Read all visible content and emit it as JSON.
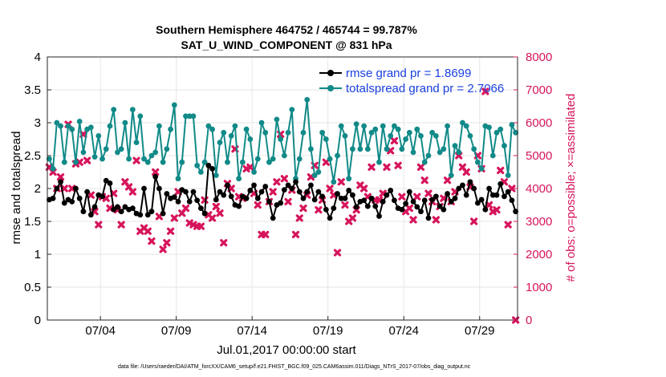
{
  "chart_data": {
    "type": "line",
    "title": "Southern Hemisphere 464752 / 465744 = 99.787%",
    "subtitle": "SAT_U_WIND_COMPONENT @ 831 hPa",
    "xlabel": "Jul.01,2017 00:00:00 start",
    "ylabel": "rmse and totalspread",
    "ylabel_right": "# of obs: o=possible; ×=assimilated",
    "xlim": [
      0.5,
      31.5
    ],
    "ylim": [
      0,
      4
    ],
    "ylim_right": [
      0,
      8000
    ],
    "x_ticks": [
      {
        "x": 4,
        "label": "07/04"
      },
      {
        "x": 9,
        "label": "07/09"
      },
      {
        "x": 14,
        "label": "07/14"
      },
      {
        "x": 19,
        "label": "07/19"
      },
      {
        "x": 24,
        "label": "07/24"
      },
      {
        "x": 29,
        "label": "07/29"
      }
    ],
    "y_ticks": [
      "0",
      "0.5",
      "1",
      "1.5",
      "2",
      "2.5",
      "3",
      "3.5",
      "4"
    ],
    "y_ticks_right": [
      "0",
      "1000",
      "2000",
      "3000",
      "4000",
      "5000",
      "6000",
      "7000",
      "8000"
    ],
    "legend_position": "top-right",
    "footer": "data file: /Users/raeder/DAI/ATM_forcXX/CAM6_setup/f.e21.FHIST_BGC.f09_025.CAM6assim.011/Diags_NTrS_2017-07/obs_diag_output.nc",
    "series": [
      {
        "name": "rmse grand pr = 1.8699",
        "color": "#000000",
        "x": [
          0.625,
          0.875,
          1.125,
          1.375,
          1.625,
          1.875,
          2.125,
          2.375,
          2.625,
          2.875,
          3.125,
          3.375,
          3.625,
          3.875,
          4.125,
          4.375,
          4.625,
          4.875,
          5.125,
          5.375,
          5.625,
          5.875,
          6.125,
          6.375,
          6.625,
          6.875,
          7.125,
          7.375,
          7.625,
          7.875,
          8.125,
          8.375,
          8.625,
          8.875,
          9.125,
          9.375,
          9.625,
          9.875,
          10.125,
          10.375,
          10.625,
          10.875,
          11.125,
          11.375,
          11.625,
          11.875,
          12.125,
          12.375,
          12.625,
          12.875,
          13.125,
          13.375,
          13.625,
          13.875,
          14.125,
          14.375,
          14.625,
          14.875,
          15.125,
          15.375,
          15.625,
          15.875,
          16.125,
          16.375,
          16.625,
          16.875,
          17.125,
          17.375,
          17.625,
          17.875,
          18.125,
          18.375,
          18.625,
          18.875,
          19.125,
          19.375,
          19.625,
          19.875,
          20.125,
          20.375,
          20.625,
          20.875,
          21.125,
          21.375,
          21.625,
          21.875,
          22.125,
          22.375,
          22.625,
          22.875,
          23.125,
          23.375,
          23.625,
          23.875,
          24.125,
          24.375,
          24.625,
          24.875,
          25.125,
          25.375,
          25.625,
          25.875,
          26.125,
          26.375,
          26.625,
          26.875,
          27.125,
          27.375,
          27.625,
          27.875,
          28.125,
          28.375,
          28.625,
          28.875,
          29.125,
          29.375,
          29.625,
          29.875,
          30.125,
          30.375,
          30.625,
          30.875,
          31.125,
          31.375
        ],
        "values": [
          1.83,
          1.85,
          2.0,
          2.1,
          1.78,
          1.83,
          1.8,
          2.0,
          1.85,
          1.65,
          1.95,
          1.6,
          1.72,
          1.9,
          1.88,
          2.12,
          2.08,
          1.68,
          1.72,
          1.65,
          1.72,
          1.68,
          1.7,
          1.62,
          1.6,
          2.0,
          1.6,
          1.65,
          2.18,
          2.0,
          1.62,
          1.92,
          1.85,
          1.87,
          1.8,
          1.98,
          1.95,
          1.8,
          1.95,
          1.82,
          1.7,
          1.62,
          2.35,
          2.3,
          1.83,
          1.95,
          1.9,
          2.05,
          1.88,
          1.75,
          1.73,
          1.88,
          1.85,
          1.97,
          2.05,
          1.85,
          1.95,
          2.03,
          1.8,
          1.55,
          1.75,
          1.78,
          1.98,
          2.05,
          2.0,
          2.1,
          1.95,
          1.85,
          1.95,
          2.05,
          1.83,
          1.95,
          1.88,
          1.68,
          1.55,
          1.7,
          1.92,
          1.85,
          1.85,
          1.97,
          1.9,
          1.72,
          1.8,
          1.82,
          1.73,
          1.85,
          1.73,
          1.58,
          1.8,
          1.9,
          1.97,
          1.82,
          1.7,
          1.68,
          1.77,
          1.95,
          1.8,
          1.72,
          1.65,
          1.82,
          1.55,
          1.83,
          1.88,
          1.73,
          1.68,
          1.92,
          1.8,
          1.85,
          2.0,
          2.05,
          1.9,
          2.1,
          2.0,
          1.78,
          1.83,
          1.68,
          2.0,
          1.9,
          1.9,
          2.07,
          1.88,
          1.95,
          1.82,
          1.65
        ]
      },
      {
        "name": "totalspread grand pr = 2.7066",
        "color": "#118a88",
        "x": [
          0.625,
          0.875,
          1.125,
          1.375,
          1.625,
          1.875,
          2.125,
          2.375,
          2.625,
          2.875,
          3.125,
          3.375,
          3.625,
          3.875,
          4.125,
          4.375,
          4.625,
          4.875,
          5.125,
          5.375,
          5.625,
          5.875,
          6.125,
          6.375,
          6.625,
          6.875,
          7.125,
          7.375,
          7.625,
          7.875,
          8.125,
          8.375,
          8.625,
          8.875,
          9.125,
          9.375,
          9.625,
          9.875,
          10.125,
          10.375,
          10.625,
          10.875,
          11.125,
          11.375,
          11.625,
          11.875,
          12.125,
          12.375,
          12.625,
          12.875,
          13.125,
          13.375,
          13.625,
          13.875,
          14.125,
          14.375,
          14.625,
          14.875,
          15.125,
          15.375,
          15.625,
          15.875,
          16.125,
          16.375,
          16.625,
          16.875,
          17.125,
          17.375,
          17.625,
          17.875,
          18.125,
          18.375,
          18.625,
          18.875,
          19.125,
          19.375,
          19.625,
          19.875,
          20.125,
          20.375,
          20.625,
          20.875,
          21.125,
          21.375,
          21.625,
          21.875,
          22.125,
          22.375,
          22.625,
          22.875,
          23.125,
          23.375,
          23.625,
          23.875,
          24.125,
          24.375,
          24.625,
          24.875,
          25.125,
          25.375,
          25.625,
          25.875,
          26.125,
          26.375,
          26.625,
          26.875,
          27.125,
          27.375,
          27.625,
          27.875,
          28.125,
          28.375,
          28.625,
          28.875,
          29.125,
          29.375,
          29.625,
          29.875,
          30.125,
          30.375,
          30.625,
          30.875,
          31.125,
          31.375
        ],
        "values": [
          2.45,
          2.3,
          3.0,
          2.95,
          2.4,
          2.95,
          2.9,
          2.4,
          3.02,
          2.55,
          2.9,
          2.93,
          2.48,
          2.8,
          2.45,
          2.6,
          2.95,
          3.2,
          2.55,
          2.6,
          3.0,
          2.45,
          3.2,
          2.7,
          3.1,
          2.45,
          2.4,
          2.5,
          2.55,
          2.95,
          2.4,
          2.6,
          2.9,
          3.27,
          2.15,
          2.4,
          3.1,
          3.1,
          3.1,
          2.35,
          2.25,
          2.4,
          2.95,
          2.9,
          2.2,
          2.7,
          2.85,
          2.4,
          2.8,
          2.95,
          2.15,
          2.4,
          2.9,
          2.75,
          2.25,
          2.45,
          3.0,
          2.85,
          2.4,
          2.45,
          3.05,
          2.75,
          2.5,
          2.85,
          3.2,
          2.15,
          2.45,
          2.85,
          3.35,
          2.6,
          2.2,
          2.25,
          2.85,
          2.75,
          2.45,
          2.1,
          2.5,
          2.95,
          2.8,
          2.15,
          2.6,
          2.98,
          2.6,
          2.95,
          2.6,
          2.85,
          2.9,
          2.4,
          2.95,
          2.6,
          2.8,
          2.95,
          2.9,
          2.6,
          2.75,
          2.85,
          2.55,
          2.9,
          2.8,
          2.4,
          2.5,
          2.85,
          2.8,
          2.55,
          2.6,
          2.95,
          2.2,
          2.65,
          2.55,
          3.0,
          2.95,
          2.8,
          2.6,
          2.4,
          2.3,
          2.95,
          2.93,
          2.5,
          2.85,
          2.9,
          2.65,
          2.2,
          2.97,
          2.85
        ]
      },
      {
        "name": "# assimilated",
        "color": "#d6145b",
        "x": [
          0.625,
          0.875,
          1.125,
          1.375,
          1.625,
          1.875,
          2.125,
          2.375,
          2.625,
          2.875,
          3.125,
          3.375,
          3.625,
          3.875,
          4.125,
          4.375,
          4.625,
          4.875,
          5.125,
          5.375,
          5.625,
          5.875,
          6.125,
          6.375,
          6.625,
          6.875,
          7.125,
          7.375,
          7.625,
          7.875,
          8.125,
          8.375,
          8.625,
          8.875,
          9.125,
          9.375,
          9.625,
          9.875,
          10.125,
          10.375,
          10.625,
          10.875,
          11.125,
          11.375,
          11.625,
          11.875,
          12.125,
          12.375,
          12.625,
          12.875,
          13.125,
          13.375,
          13.625,
          13.875,
          14.125,
          14.375,
          14.625,
          14.875,
          15.125,
          15.375,
          15.625,
          15.875,
          16.125,
          16.375,
          16.625,
          16.875,
          17.125,
          17.375,
          17.625,
          17.875,
          18.125,
          18.375,
          18.625,
          18.875,
          19.125,
          19.375,
          19.625,
          19.875,
          20.125,
          20.375,
          20.625,
          20.875,
          21.125,
          21.375,
          21.625,
          21.875,
          22.125,
          22.375,
          22.625,
          22.875,
          23.125,
          23.375,
          23.625,
          23.875,
          24.125,
          24.375,
          24.625,
          24.875,
          25.125,
          25.375,
          25.625,
          25.875,
          26.125,
          26.375,
          26.625,
          26.875,
          27.125,
          27.375,
          27.625,
          27.875,
          28.125,
          28.375,
          28.625,
          28.875,
          29.125,
          29.375,
          29.625,
          29.875,
          30.125,
          30.375,
          30.625,
          30.875,
          31.125,
          31.375
        ],
        "values": [
          4650,
          4500,
          4000,
          4350,
          4000,
          5950,
          4000,
          4750,
          4800,
          5650,
          4850,
          3800,
          3300,
          2900,
          3750,
          3700,
          3400,
          3850,
          3350,
          2900,
          4200,
          4050,
          3900,
          4850,
          2700,
          2800,
          2700,
          2400,
          4500,
          3150,
          2150,
          2350,
          2700,
          3100,
          3900,
          3250,
          3400,
          2950,
          2900,
          2850,
          2850,
          3650,
          3200,
          3100,
          3450,
          3250,
          2350,
          4150,
          4000,
          5200,
          3750,
          3700,
          4600,
          4650,
          3850,
          3500,
          2600,
          2600,
          3600,
          3900,
          4200,
          5650,
          4300,
          3600,
          3950,
          2600,
          3100,
          3400,
          3800,
          4350,
          4700,
          3350,
          3650,
          4800,
          4000,
          3800,
          2050,
          4200,
          3500,
          3000,
          3100,
          3350,
          4100,
          4000,
          3750,
          4650,
          3650,
          3650,
          3850,
          4650,
          5150,
          5450,
          4700,
          3750,
          3300,
          3400,
          3050,
          3750,
          4650,
          4250,
          3850,
          3600,
          3050,
          3450,
          3700,
          4250,
          3600,
          3900,
          5000,
          4650,
          4500,
          4050,
          3000,
          5000,
          4600,
          6950,
          3500,
          3300,
          3350,
          4550,
          4200,
          2900,
          4000,
          0
        ]
      }
    ]
  }
}
